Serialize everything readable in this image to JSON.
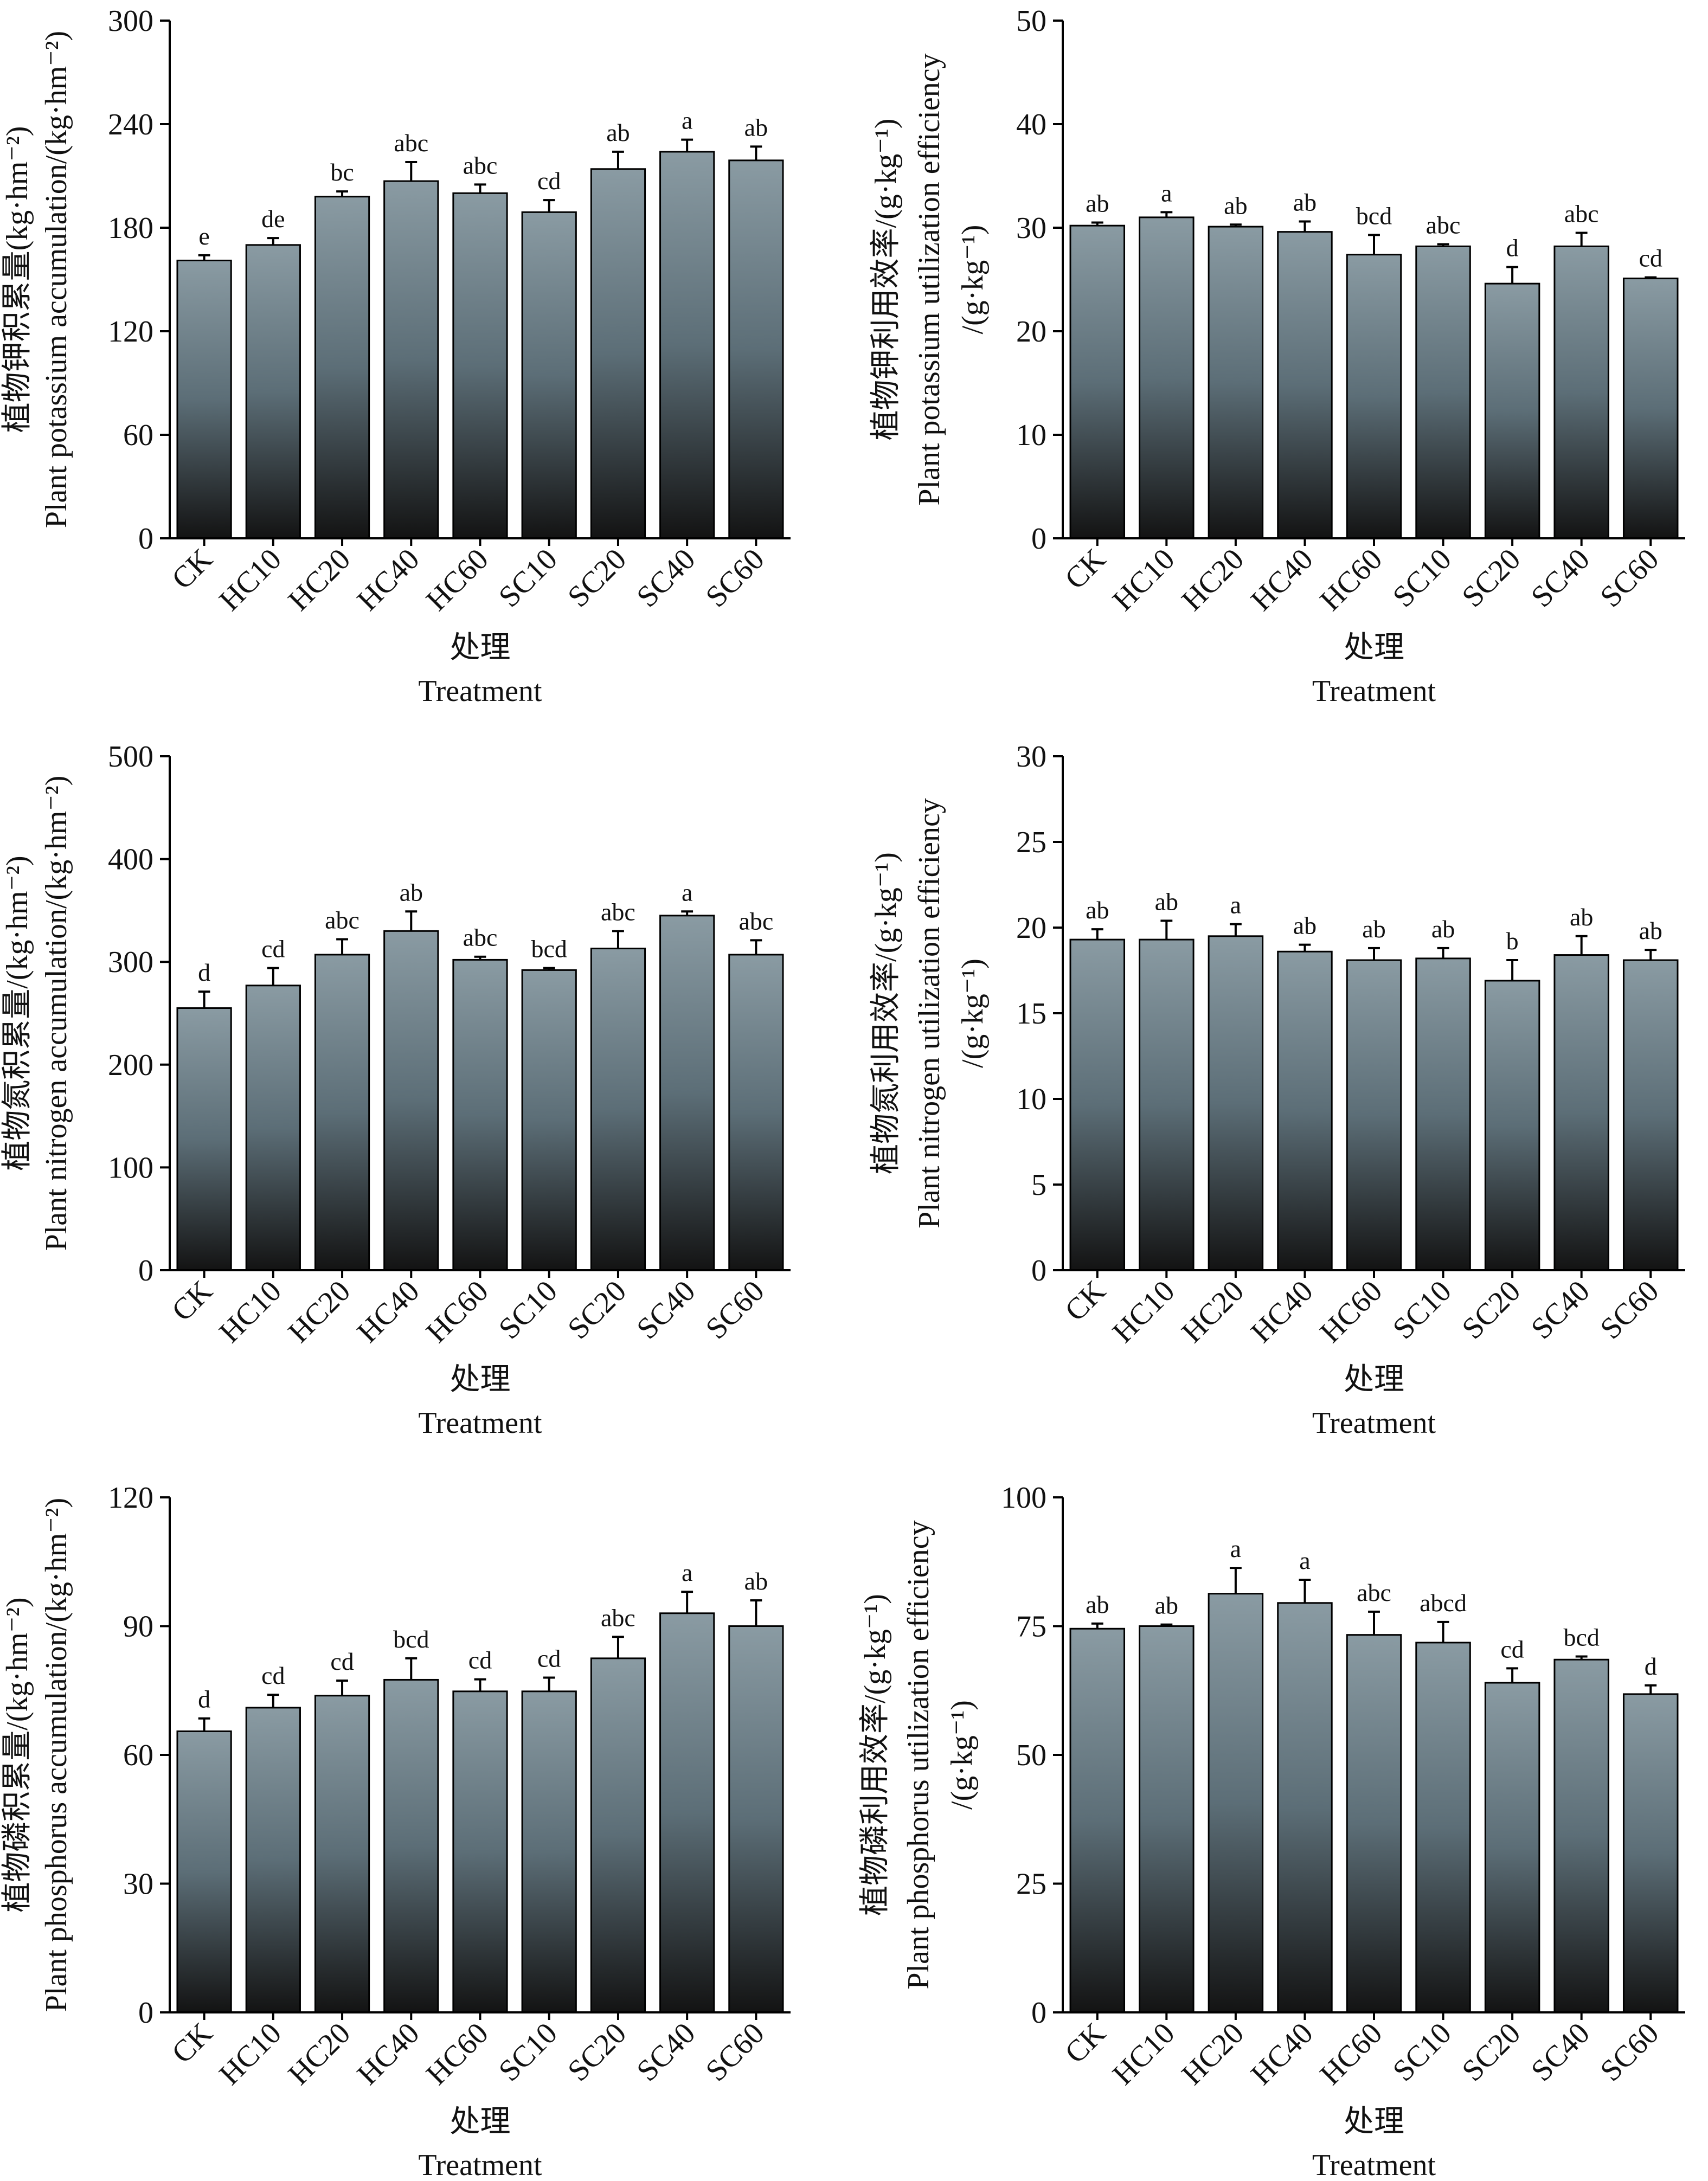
{
  "colors": {
    "bar_gradient_top": "#8a9ba3",
    "bar_gradient_mid": "#5c6e77",
    "bar_gradient_bottom": "#131313",
    "axis": "#000000",
    "text": "#111111"
  },
  "chart_data": [
    {
      "type": "bar",
      "position": "top-left",
      "categories": [
        "CK",
        "HC10",
        "HC20",
        "HC40",
        "HC60",
        "SC10",
        "SC20",
        "SC40",
        "SC60"
      ],
      "values": [
        161,
        170,
        198,
        207,
        200,
        189,
        214,
        224,
        219
      ],
      "errors": [
        3,
        4,
        3,
        11,
        5,
        7,
        10,
        7,
        8
      ],
      "significance": [
        "e",
        "de",
        "bc",
        "abc",
        "abc",
        "cd",
        "ab",
        "a",
        "ab"
      ],
      "ylim": [
        0,
        300
      ],
      "yticks": [
        0,
        60,
        120,
        180,
        240,
        300
      ],
      "ylabel_lines": [
        "植物钾积累量(kg·hm⁻²)",
        "Plant potassium accumulation/(kg·hm⁻²)"
      ],
      "xlabel_lines": [
        "处理",
        "Treatment"
      ],
      "grid": false
    },
    {
      "type": "bar",
      "position": "top-right",
      "categories": [
        "CK",
        "HC10",
        "HC20",
        "HC40",
        "HC60",
        "SC10",
        "SC20",
        "SC40",
        "SC60"
      ],
      "values": [
        30.2,
        31.0,
        30.1,
        29.6,
        27.4,
        28.2,
        24.6,
        28.2,
        25.1
      ],
      "errors": [
        0.3,
        0.5,
        0.2,
        1.0,
        1.9,
        0.2,
        1.6,
        1.3,
        0.1
      ],
      "significance": [
        "ab",
        "a",
        "ab",
        "ab",
        "bcd",
        "abc",
        "d",
        "abc",
        "cd"
      ],
      "ylim": [
        0,
        50
      ],
      "yticks": [
        0,
        10,
        20,
        30,
        40,
        50
      ],
      "ylabel_lines": [
        "植物钾利用效率/(g·kg⁻¹)",
        "Plant potassium utilization efficiency",
        "/(g·kg⁻¹)"
      ],
      "xlabel_lines": [
        "处理",
        "Treatment"
      ],
      "grid": false
    },
    {
      "type": "bar",
      "position": "middle-left",
      "categories": [
        "CK",
        "HC10",
        "HC20",
        "HC40",
        "HC60",
        "SC10",
        "SC20",
        "SC40",
        "SC60"
      ],
      "values": [
        255,
        277,
        307,
        330,
        302,
        292,
        313,
        345,
        307
      ],
      "errors": [
        16,
        17,
        15,
        19,
        3,
        2,
        17,
        4,
        14
      ],
      "significance": [
        "d",
        "cd",
        "abc",
        "ab",
        "abc",
        "bcd",
        "abc",
        "a",
        "abc"
      ],
      "ylim": [
        0,
        500
      ],
      "yticks": [
        0,
        100,
        200,
        300,
        400,
        500
      ],
      "ylabel_lines": [
        "植物氮积累量/(kg·hm⁻²)",
        "Plant nitrogen accumulation/(kg·hm⁻²)"
      ],
      "xlabel_lines": [
        "处理",
        "Treatment"
      ],
      "grid": false
    },
    {
      "type": "bar",
      "position": "middle-right",
      "categories": [
        "CK",
        "HC10",
        "HC20",
        "HC40",
        "HC60",
        "SC10",
        "SC20",
        "SC40",
        "SC60"
      ],
      "values": [
        19.3,
        19.3,
        19.5,
        18.6,
        18.1,
        18.2,
        16.9,
        18.4,
        18.1
      ],
      "errors": [
        0.6,
        1.1,
        0.7,
        0.4,
        0.7,
        0.6,
        1.2,
        1.1,
        0.6
      ],
      "significance": [
        "ab",
        "ab",
        "a",
        "ab",
        "ab",
        "ab",
        "b",
        "ab",
        "ab"
      ],
      "ylim": [
        0,
        30
      ],
      "yticks": [
        0,
        5,
        10,
        15,
        20,
        25,
        30
      ],
      "ylabel_lines": [
        "植物氮利用效率/(g·kg⁻¹)",
        "Plant nitrogen utilization efficiency",
        "/(g·kg⁻¹)"
      ],
      "xlabel_lines": [
        "处理",
        "Treatment"
      ],
      "grid": false
    },
    {
      "type": "bar",
      "position": "bottom-left",
      "categories": [
        "CK",
        "HC10",
        "HC20",
        "HC40",
        "HC60",
        "SC10",
        "SC20",
        "SC40",
        "SC60"
      ],
      "values": [
        65.5,
        71.0,
        73.8,
        77.5,
        74.8,
        74.8,
        82.5,
        93.0,
        90.0
      ],
      "errors": [
        3.0,
        3.0,
        3.5,
        5.0,
        2.8,
        3.2,
        5.0,
        5.0,
        6.0
      ],
      "significance": [
        "d",
        "cd",
        "cd",
        "bcd",
        "cd",
        "cd",
        "abc",
        "a",
        "ab"
      ],
      "ylim": [
        0,
        120
      ],
      "yticks": [
        0,
        30,
        60,
        90,
        120
      ],
      "ylabel_lines": [
        "植物磷积累量/(kg·hm⁻²)",
        "Plant phosphorus accumulation/(kg·hm⁻²)"
      ],
      "xlabel_lines": [
        "处理",
        "Treatment"
      ],
      "grid": false
    },
    {
      "type": "bar",
      "position": "bottom-right",
      "categories": [
        "CK",
        "HC10",
        "HC20",
        "HC40",
        "HC60",
        "SC10",
        "SC20",
        "SC40",
        "SC60"
      ],
      "values": [
        74.5,
        75.0,
        81.3,
        79.5,
        73.3,
        71.8,
        64.0,
        68.5,
        61.8
      ],
      "errors": [
        1.0,
        0.3,
        5.0,
        4.5,
        4.5,
        4.0,
        2.8,
        0.6,
        1.7
      ],
      "significance": [
        "ab",
        "ab",
        "a",
        "a",
        "abc",
        "abcd",
        "cd",
        "bcd",
        "d"
      ],
      "ylim": [
        0,
        100
      ],
      "yticks": [
        0,
        25,
        50,
        75,
        100
      ],
      "ylabel_lines": [
        "植物磷利用效率/(g·kg⁻¹)",
        "Plant phosphorus utilization efficiency",
        "/(g·kg⁻¹)"
      ],
      "xlabel_lines": [
        "处理",
        "Treatment"
      ],
      "grid": false
    }
  ]
}
